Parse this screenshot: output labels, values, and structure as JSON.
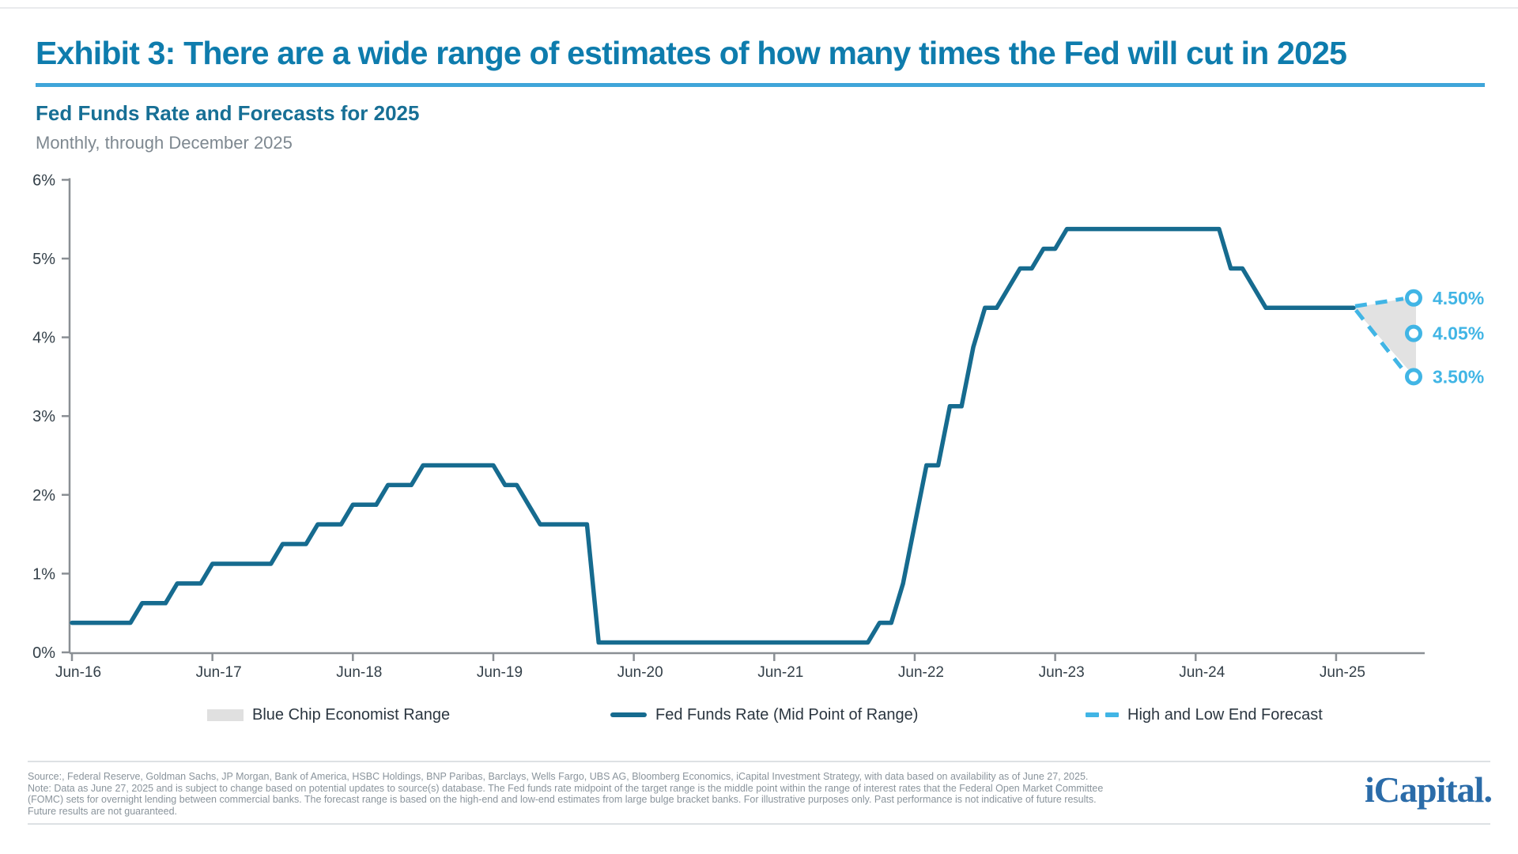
{
  "page": {
    "title": "Exhibit 3: There are a wide range of estimates of how many times the Fed will cut in 2025",
    "subtitle": "Fed Funds Rate and Forecasts for 2025",
    "caption": "Monthly, through December 2025"
  },
  "colors": {
    "title_blue": "#0e7cad",
    "underline_blue": "#3fa5d9",
    "subtitle_teal": "#176f95",
    "line_teal": "#166b8f",
    "forecast_blue": "#41b5e5",
    "range_gray": "#e2e2e2",
    "axis_gray": "#8a8f94",
    "axis_text": "#333f48",
    "muted_text": "#7e8890",
    "source_text": "#8a949c",
    "logo_blue": "#2b6ca9"
  },
  "chart_data": {
    "type": "line",
    "title": "Fed Funds Rate and Forecasts for 2025",
    "subtitle": "Monthly, through December 2025",
    "xlabel": "",
    "ylabel": "",
    "ylim": [
      0,
      6
    ],
    "grid": false,
    "y_ticks": [
      {
        "value": 0,
        "label": "0%"
      },
      {
        "value": 1,
        "label": "1%"
      },
      {
        "value": 2,
        "label": "2%"
      },
      {
        "value": 3,
        "label": "3%"
      },
      {
        "value": 4,
        "label": "4%"
      },
      {
        "value": 5,
        "label": "5%"
      },
      {
        "value": 6,
        "label": "6%"
      }
    ],
    "x_ticks": [
      "Jun-16",
      "Jun-17",
      "Jun-18",
      "Jun-19",
      "Jun-20",
      "Jun-21",
      "Jun-22",
      "Jun-23",
      "Jun-24",
      "Jun-25"
    ],
    "series": [
      {
        "name": "Fed Funds Rate (Mid Point of Range)",
        "frequency": "monthly",
        "x_start": "Jun-2016",
        "x_end": "Jun-2025",
        "values": [
          0.375,
          0.375,
          0.375,
          0.375,
          0.375,
          0.375,
          0.625,
          0.625,
          0.625,
          0.875,
          0.875,
          0.875,
          1.125,
          1.125,
          1.125,
          1.125,
          1.125,
          1.125,
          1.375,
          1.375,
          1.375,
          1.625,
          1.625,
          1.625,
          1.875,
          1.875,
          1.875,
          2.125,
          2.125,
          2.125,
          2.375,
          2.375,
          2.375,
          2.375,
          2.375,
          2.375,
          2.375,
          2.125,
          2.125,
          1.875,
          1.625,
          1.625,
          1.625,
          1.625,
          1.625,
          0.125,
          0.125,
          0.125,
          0.125,
          0.125,
          0.125,
          0.125,
          0.125,
          0.125,
          0.125,
          0.125,
          0.125,
          0.125,
          0.125,
          0.125,
          0.125,
          0.125,
          0.125,
          0.125,
          0.125,
          0.125,
          0.125,
          0.125,
          0.125,
          0.375,
          0.375,
          0.875,
          1.625,
          2.375,
          2.375,
          3.125,
          3.125,
          3.875,
          4.375,
          4.375,
          4.625,
          4.875,
          4.875,
          5.125,
          5.125,
          5.375,
          5.375,
          5.375,
          5.375,
          5.375,
          5.375,
          5.375,
          5.375,
          5.375,
          5.375,
          5.375,
          5.375,
          5.375,
          5.375,
          4.875,
          4.875,
          4.625,
          4.375,
          4.375,
          4.375,
          4.375,
          4.375,
          4.375,
          4.375
        ]
      }
    ],
    "forecast": {
      "name": "High and Low End Forecast",
      "range_name": "Blue Chip Economist Range",
      "start_value": 4.375,
      "end_label": "Dec-25",
      "points": [
        {
          "label": "4.50%",
          "value": 4.5,
          "kind": "high"
        },
        {
          "label": "4.05%",
          "value": 4.05,
          "kind": "mid"
        },
        {
          "label": "3.50%",
          "value": 3.5,
          "kind": "low"
        }
      ]
    },
    "legend_position": "bottom"
  },
  "legend": {
    "items": [
      {
        "label": "Blue Chip Economist Range"
      },
      {
        "label": "Fed Funds Rate (Mid Point of Range)"
      },
      {
        "label": "High and Low End Forecast"
      }
    ]
  },
  "footer": {
    "source_text": "Source:, Federal Reserve, Goldman Sachs, JP Morgan, Bank of America, HSBC Holdings, BNP Paribas, Barclays, Wells Fargo, UBS AG, Bloomberg Economics, iCapital Investment Strategy, with data based on availability as of June 27, 2025. Note: Data as June 27, 2025 and is subject to change based on potential updates to source(s) database. The Fed funds rate midpoint of the target range is the middle point within the range of interest rates that the Federal Open Market Committee (FOMC) sets for overnight lending between commercial banks. The forecast range is based on the high-end and low-end estimates from large bulge bracket banks. For illustrative purposes only. Past performance is not indicative of future results. Future results are not guaranteed.",
    "logo_text": "iCapital."
  }
}
